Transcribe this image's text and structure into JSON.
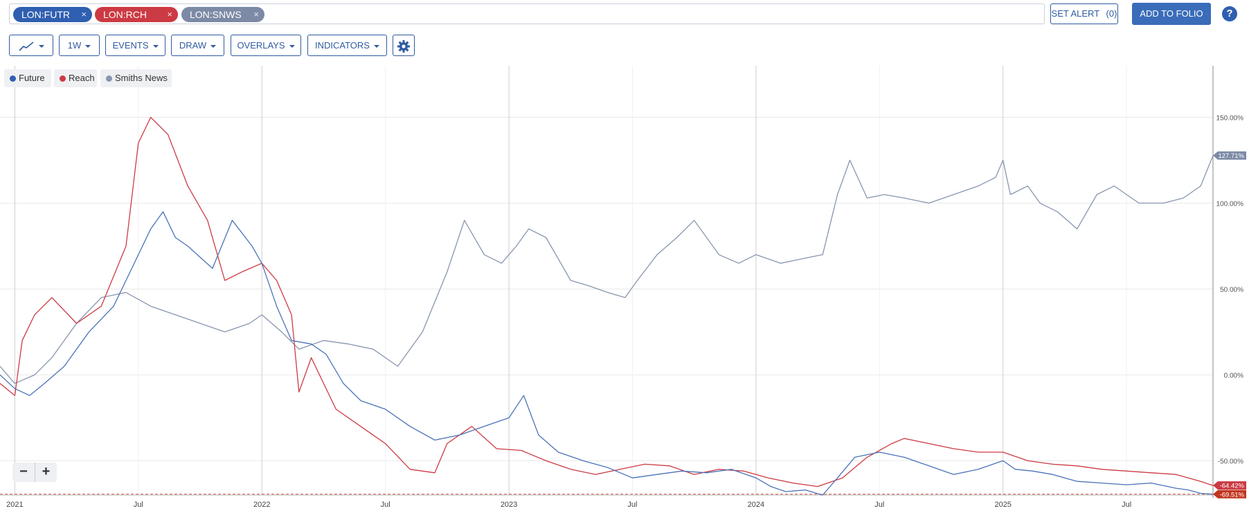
{
  "symbols": [
    {
      "label": "LON:FUTR",
      "close": "×"
    },
    {
      "label": "LON:RCH",
      "close": "×"
    },
    {
      "label": "LON:SNWS",
      "close": "×"
    }
  ],
  "actions": {
    "set_alert": "SET ALERT",
    "alert_count": "(0)",
    "add_to_folio": "ADD TO FOLIO",
    "help": "?"
  },
  "toolbar": {
    "interval": "1W",
    "events": "EVENTS",
    "draw": "DRAW",
    "overlays": "OVERLAYS",
    "indicators": "INDICATORS"
  },
  "legend": [
    {
      "name": "Future",
      "color": "#2f5fb0"
    },
    {
      "name": "Reach",
      "color": "#cc3a43"
    },
    {
      "name": "Smiths News",
      "color": "#8795ae"
    }
  ],
  "zoom": {
    "minus": "−",
    "plus": "+"
  },
  "chart_data": {
    "type": "line",
    "y_unit": "%",
    "ylim": [
      -70,
      180
    ],
    "y_ticks": [
      "150.00%",
      "100.00%",
      "50.00%",
      "0.00%",
      "-50.00%"
    ],
    "y_tick_values": [
      150,
      100,
      50,
      0,
      -50
    ],
    "x_ticks": [
      "2021",
      "Jul",
      "2022",
      "Jul",
      "2023",
      "Jul",
      "2024",
      "Jul",
      "2025",
      "Jul"
    ],
    "x_tick_values": [
      2021.0,
      2021.5,
      2022.0,
      2022.5,
      2023.0,
      2023.5,
      2024.0,
      2024.5,
      2025.0,
      2025.5
    ],
    "xlim": [
      2020.94,
      2025.85
    ],
    "grid": true,
    "baseline_value": -69.51,
    "last_value_labels": [
      "127.71%",
      "-64.42%",
      "-69.51%"
    ],
    "series": [
      {
        "name": "Future",
        "color": "#4a72b8",
        "x": [
          2020.94,
          2021.0,
          2021.06,
          2021.12,
          2021.2,
          2021.3,
          2021.4,
          2021.45,
          2021.55,
          2021.6,
          2021.65,
          2021.7,
          2021.8,
          2021.88,
          2021.96,
          2022.0,
          2022.06,
          2022.12,
          2022.2,
          2022.26,
          2022.33,
          2022.4,
          2022.5,
          2022.6,
          2022.7,
          2022.8,
          2022.9,
          2023.0,
          2023.06,
          2023.12,
          2023.2,
          2023.3,
          2023.4,
          2023.5,
          2023.6,
          2023.7,
          2023.8,
          2023.9,
          2024.0,
          2024.06,
          2024.12,
          2024.2,
          2024.27,
          2024.33,
          2024.4,
          2024.5,
          2024.6,
          2024.7,
          2024.8,
          2024.9,
          2025.0,
          2025.05,
          2025.12,
          2025.2,
          2025.3,
          2025.4,
          2025.5,
          2025.6,
          2025.7,
          2025.75,
          2025.8,
          2025.85
        ],
        "y": [
          0,
          -8,
          -12,
          -5,
          5,
          25,
          40,
          55,
          85,
          95,
          80,
          75,
          62,
          90,
          75,
          65,
          40,
          20,
          18,
          12,
          -5,
          -15,
          -20,
          -30,
          -38,
          -35,
          -30,
          -25,
          -12,
          -35,
          -45,
          -50,
          -54,
          -60,
          -58,
          -56,
          -57,
          -55,
          -60,
          -65,
          -68,
          -67,
          -70,
          -60,
          -48,
          -45,
          -48,
          -53,
          -58,
          -55,
          -50,
          -55,
          -56,
          -58,
          -62,
          -63,
          -64,
          -63,
          -66,
          -67,
          -69,
          -69.51
        ]
      },
      {
        "name": "Reach",
        "color": "#cc3a43",
        "x": [
          2020.94,
          2021.0,
          2021.03,
          2021.08,
          2021.15,
          2021.25,
          2021.35,
          2021.45,
          2021.5,
          2021.55,
          2021.62,
          2021.7,
          2021.78,
          2021.85,
          2021.92,
          2022.0,
          2022.06,
          2022.12,
          2022.15,
          2022.2,
          2022.3,
          2022.4,
          2022.5,
          2022.6,
          2022.7,
          2022.75,
          2022.85,
          2022.95,
          2023.05,
          2023.15,
          2023.25,
          2023.35,
          2023.45,
          2023.55,
          2023.65,
          2023.75,
          2023.85,
          2023.95,
          2024.05,
          2024.15,
          2024.25,
          2024.35,
          2024.45,
          2024.55,
          2024.6,
          2024.7,
          2024.8,
          2024.9,
          2025.0,
          2025.1,
          2025.2,
          2025.3,
          2025.4,
          2025.5,
          2025.6,
          2025.7,
          2025.8,
          2025.85
        ],
        "y": [
          -5,
          -12,
          20,
          35,
          45,
          30,
          40,
          75,
          135,
          150,
          140,
          110,
          90,
          55,
          60,
          65,
          55,
          35,
          -10,
          10,
          -20,
          -30,
          -40,
          -55,
          -57,
          -40,
          -30,
          -43,
          -44,
          -50,
          -55,
          -58,
          -55,
          -52,
          -53,
          -58,
          -55,
          -56,
          -60,
          -63,
          -65,
          -60,
          -48,
          -40,
          -37,
          -40,
          -43,
          -45,
          -45,
          -50,
          -52,
          -53,
          -55,
          -56,
          -57,
          -58,
          -62,
          -64.42
        ]
      },
      {
        "name": "Smiths News",
        "color": "#8795ae",
        "x": [
          2020.94,
          2021.0,
          2021.08,
          2021.15,
          2021.25,
          2021.35,
          2021.45,
          2021.55,
          2021.65,
          2021.75,
          2021.85,
          2021.95,
          2022.0,
          2022.08,
          2022.15,
          2022.25,
          2022.35,
          2022.45,
          2022.55,
          2022.65,
          2022.75,
          2022.82,
          2022.9,
          2022.97,
          2023.03,
          2023.08,
          2023.15,
          2023.25,
          2023.32,
          2023.4,
          2023.47,
          2023.52,
          2023.6,
          2023.68,
          2023.75,
          2023.85,
          2023.93,
          2024.0,
          2024.1,
          2024.2,
          2024.27,
          2024.33,
          2024.38,
          2024.45,
          2024.52,
          2024.6,
          2024.7,
          2024.8,
          2024.9,
          2024.97,
          2025.0,
          2025.03,
          2025.1,
          2025.15,
          2025.22,
          2025.3,
          2025.38,
          2025.45,
          2025.55,
          2025.65,
          2025.73,
          2025.8,
          2025.85
        ],
        "y": [
          5,
          -5,
          0,
          10,
          30,
          45,
          48,
          40,
          35,
          30,
          25,
          30,
          35,
          25,
          15,
          20,
          18,
          15,
          5,
          25,
          60,
          90,
          70,
          65,
          75,
          85,
          80,
          55,
          52,
          48,
          45,
          55,
          70,
          80,
          90,
          70,
          65,
          70,
          65,
          68,
          70,
          105,
          125,
          103,
          105,
          103,
          100,
          105,
          110,
          115,
          125,
          105,
          110,
          100,
          95,
          85,
          105,
          110,
          100,
          100,
          103,
          110,
          127.71
        ]
      }
    ]
  }
}
